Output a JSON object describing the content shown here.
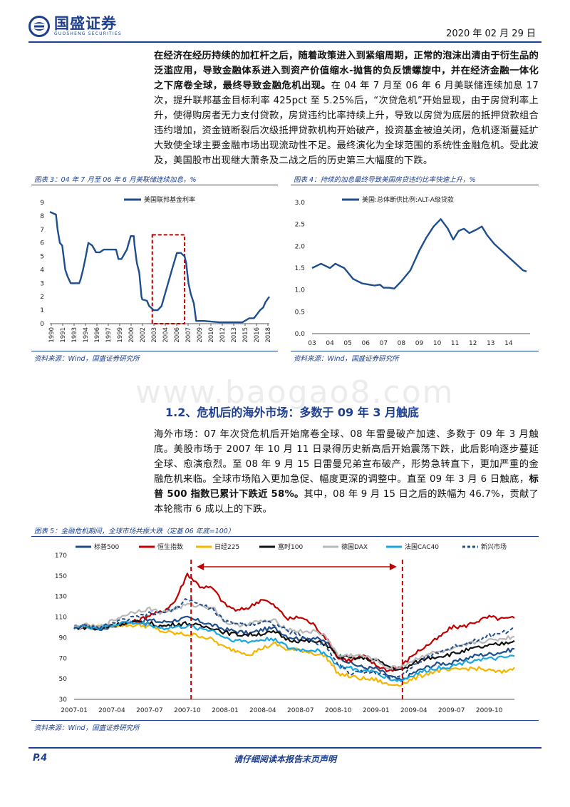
{
  "header": {
    "logo_cn": "国盛证券",
    "logo_en": "GUOSHENG SECURITIES",
    "date": "2020 年 02 月 29 日",
    "logo_color": "#1d3f8f"
  },
  "intro": {
    "bold": "在经济在经历持续的加杠杆之后，随着政策进入到紧缩周期，正常的泡沫出清由于衍生品的泛滥应用，导致金融体系进入到资产价值缩水-抛售的负反馈螺旋中，并在经济金融一体化之下席卷全球，最终导致金融危机出现。",
    "normal": "在 04 年 7 月至 06 年 6 月美联储连续加息 17 次，提升联邦基金目标利率 425pct 至 5.25%后，“次贷危机”开始显现，由于房贷利率上升，使得购房者无力支付贷款，房贷违约比率持续上升，导致以房贷为底层的抵押贷款组合违约增加，资金链断裂后次级抵押贷款机构开始破产，投资基金被迫关闭，危机逐渐蔓延扩大致使全球主要金融市场出现流动性不足。最终演化为全球范围的系统性金融危机。受此波及，美国股市出现继大萧条及二战之后的历史第三大幅度的下跌。"
  },
  "watermark": "www.baogao8.com",
  "fig3": {
    "title": "图表 3：04 年 7 月至 06 年 6 月美联储连续加息，%",
    "source": "资料来源：Wind，国盛证券研究所"
  },
  "fig4": {
    "title": "图表 4：持续的加息最终导致美国房贷违约比率快速上升，%",
    "source": "资料来源：Wind，国盛证券研究所"
  },
  "section": {
    "title": "1.2、危机后的海外市场：多数于 09 年 3 月触底"
  },
  "para2": {
    "text1": "海外市场：07 年次贷危机后开始席卷全球、08 年雷曼破产加速、多数于 09 年 3 月触底。美股市场于 2007 年 10 月 11 日录得历史新高后开始震荡下跌，此后影响逐步蔓延全球、愈演愈烈。至 08 年 9 月 15 日雷曼兄弟宣布破产，形势急转直下，更加严重的金融危机来临。全球市场陷入更加急促、幅度更深的调整中。直至 09 年 3 月 6 日触底，",
    "bold": "标普 500 指数已累计下跌近 58%。",
    "text2": "其中，08 年 9 月 15 日之后的跌幅为 46.7%，贡献了本轮熊市 6 成以上的下跌。"
  },
  "fig5": {
    "title": "图表 5：金融危机期间，全球市场共振大跌（定基 06 年底=100）",
    "source": "资料来源：Wind，国盛证券研究所"
  },
  "footer": {
    "page": "P.4",
    "disclaimer": "请仔细阅读本报告末页声明"
  },
  "chart_data": [
    {
      "type": "line",
      "title": "",
      "legend": [
        "美国联邦基金利率"
      ],
      "legend_position": "top-left",
      "xlim": [
        1990,
        2018.5
      ],
      "ylim": [
        0,
        9
      ],
      "x_ticks": [
        "1990",
        "1991",
        "1993",
        "1994",
        "1996",
        "1997",
        "1999",
        "2000",
        "2002",
        "2003",
        "2004",
        "2006",
        "2007",
        "2009",
        "2010",
        "2012",
        "2013",
        "2015",
        "2016",
        "2018"
      ],
      "y_ticks": [
        "0",
        "1",
        "2",
        "3",
        "4",
        "5",
        "6",
        "7",
        "8",
        "9"
      ],
      "color": "#1f4e8c",
      "highlight_box": {
        "x": [
          2003.3,
          2007.5
        ],
        "y": [
          0,
          6.6
        ],
        "color": "#c00000"
      },
      "series": [
        {
          "name": "美国联邦基金利率",
          "x": [
            1990,
            1990.4,
            1990.8,
            1991,
            1991.3,
            1991.6,
            1992,
            1992.3,
            1992.7,
            1993,
            1993.8,
            1994,
            1994.3,
            1994.6,
            1995,
            1995.5,
            1996,
            1996.5,
            1997,
            1997.5,
            1998,
            1998.6,
            1998.9,
            1999.3,
            1999.8,
            2000,
            2000.5,
            2000.9,
            2001,
            2001.3,
            2001.6,
            2001.9,
            2002,
            2002.6,
            2002.9,
            2003.5,
            2004,
            2004.5,
            2005,
            2005.5,
            2006,
            2006.5,
            2007,
            2007.5,
            2007.7,
            2008,
            2008.3,
            2008.7,
            2009,
            2010,
            2012,
            2014,
            2015,
            2015.9,
            2016.5,
            2016.9,
            2017.3,
            2017.7,
            2018,
            2018.5
          ],
          "values": [
            8.3,
            8.2,
            8.1,
            7.0,
            6.0,
            5.8,
            4.0,
            3.5,
            3.0,
            3.0,
            3.0,
            3.3,
            4.0,
            4.8,
            6.0,
            5.8,
            5.3,
            5.3,
            5.5,
            5.5,
            5.5,
            5.5,
            4.8,
            4.8,
            5.3,
            5.5,
            6.5,
            6.5,
            5.8,
            4.5,
            3.8,
            2.0,
            1.8,
            1.7,
            1.3,
            1.0,
            1.0,
            1.3,
            2.3,
            3.3,
            4.3,
            5.25,
            5.25,
            5.0,
            4.5,
            3.0,
            2.2,
            1.5,
            0.2,
            0.2,
            0.1,
            0.1,
            0.1,
            0.4,
            0.4,
            0.7,
            1.0,
            1.2,
            1.6,
            2.0
          ]
        }
      ]
    },
    {
      "type": "line",
      "title": "",
      "legend": [
        "美国:总体断供比例:ALT-A级贷款"
      ],
      "legend_position": "top-left",
      "xlim": [
        2003,
        2015.2
      ],
      "ylim": [
        0,
        3.0
      ],
      "x_ticks": [
        "03",
        "04",
        "05",
        "06",
        "07",
        "08",
        "09",
        "10",
        "11",
        "12",
        "13",
        "14"
      ],
      "y_ticks": [
        "0.0",
        "0.5",
        "1.0",
        "1.5",
        "2.0",
        "2.5",
        "3.0"
      ],
      "color": "#1f4e8c",
      "series": [
        {
          "name": "美国:总体断供比例:ALT-A级贷款",
          "x": [
            2003,
            2003.5,
            2004,
            2004.3,
            2004.8,
            2005.3,
            2005.8,
            2006.2,
            2006.5,
            2006.8,
            2007,
            2007.3,
            2007.6,
            2008,
            2008.5,
            2009,
            2009.4,
            2009.8,
            2010.2,
            2010.6,
            2010.9,
            2011.2,
            2011.5,
            2011.8,
            2012.2,
            2012.5,
            2012.8,
            2013.2,
            2013.6,
            2014,
            2014.4,
            2014.8,
            2015
          ],
          "values": [
            1.5,
            1.6,
            1.5,
            1.6,
            1.5,
            1.25,
            1.15,
            1.12,
            1.1,
            1.12,
            1.05,
            1.05,
            1.03,
            1.2,
            1.45,
            1.9,
            2.2,
            2.45,
            2.62,
            2.4,
            2.15,
            2.35,
            2.4,
            2.3,
            2.38,
            2.45,
            2.25,
            2.05,
            1.9,
            1.75,
            1.6,
            1.45,
            1.42
          ]
        }
      ]
    },
    {
      "type": "line",
      "title": "",
      "legend": [
        "标普500",
        "恒生指数",
        "日经225",
        "富时100",
        "德国DAX",
        "法国CAC40",
        "新兴市场"
      ],
      "legend_position": "top",
      "xlim": [
        "2007-01",
        "2009-12"
      ],
      "ylim": [
        30,
        170
      ],
      "y_ticks": [
        "30",
        "50",
        "70",
        "90",
        "110",
        "130",
        "150",
        "170"
      ],
      "x_ticks": [
        "2007-01",
        "2007-04",
        "2007-07",
        "2007-10",
        "2008-01",
        "2008-04",
        "2008-07",
        "2008-10",
        "2009-01",
        "2009-04",
        "2009-07",
        "2009-10"
      ],
      "annotation": {
        "vlines": [
          "2007-10-11",
          "2009-03-06"
        ],
        "arrow": "double-headed",
        "color": "#c00000"
      },
      "x_months": [
        0,
        1,
        2,
        3,
        4,
        5,
        6,
        7,
        8,
        9,
        10,
        11,
        12,
        13,
        14,
        15,
        16,
        17,
        18,
        19,
        20,
        21,
        22,
        23,
        24,
        25,
        26,
        27,
        28,
        29,
        30,
        31,
        32,
        33,
        34,
        35
      ],
      "series": [
        {
          "name": "标普500",
          "color": "#1f4e8c",
          "dash": false,
          "values": [
            100,
            101,
            98,
            101,
            104,
            106,
            107,
            105,
            107,
            109,
            106,
            102,
            98,
            96,
            94,
            98,
            99,
            91,
            89,
            90,
            86,
            72,
            65,
            61,
            60,
            53,
            48,
            56,
            61,
            65,
            65,
            69,
            73,
            74,
            76,
            79
          ]
        },
        {
          "name": "恒生指数",
          "color": "#c00000",
          "dash": false,
          "values": [
            100,
            101,
            100,
            102,
            104,
            106,
            112,
            115,
            125,
            152,
            140,
            138,
            122,
            116,
            120,
            128,
            120,
            108,
            110,
            103,
            90,
            70,
            68,
            72,
            63,
            58,
            62,
            74,
            82,
            90,
            100,
            101,
            106,
            110,
            108,
            109
          ]
        },
        {
          "name": "日经225",
          "color": "#f5b400",
          "dash": false,
          "values": [
            100,
            101,
            100,
            102,
            102,
            102,
            101,
            96,
            94,
            93,
            92,
            88,
            80,
            77,
            74,
            80,
            84,
            78,
            78,
            75,
            72,
            55,
            52,
            50,
            49,
            44,
            45,
            50,
            55,
            58,
            58,
            60,
            60,
            58,
            56,
            61
          ]
        },
        {
          "name": "富时100",
          "color": "#111111",
          "dash": false,
          "values": [
            100,
            100,
            98,
            102,
            104,
            105,
            104,
            101,
            103,
            104,
            101,
            100,
            95,
            93,
            93,
            94,
            95,
            88,
            87,
            86,
            84,
            72,
            70,
            70,
            68,
            62,
            58,
            65,
            70,
            72,
            74,
            77,
            80,
            82,
            84,
            87
          ]
        },
        {
          "name": "德国DAX",
          "color": "#b8b8b8",
          "dash": false,
          "values": [
            100,
            102,
            100,
            106,
            112,
            116,
            118,
            114,
            118,
            122,
            121,
            120,
            105,
            102,
            104,
            106,
            106,
            98,
            96,
            96,
            92,
            72,
            73,
            72,
            68,
            60,
            62,
            68,
            74,
            76,
            78,
            82,
            86,
            87,
            89,
            91
          ]
        },
        {
          "name": "法国CAC40",
          "color": "#1aa6e0",
          "dash": false,
          "values": [
            100,
            101,
            99,
            102,
            105,
            104,
            103,
            99,
            100,
            101,
            99,
            97,
            90,
            87,
            86,
            88,
            89,
            80,
            78,
            78,
            75,
            62,
            60,
            57,
            57,
            50,
            48,
            54,
            58,
            61,
            62,
            66,
            69,
            69,
            70,
            72
          ]
        },
        {
          "name": "新兴市场",
          "color": "#1f4e8c",
          "dash": true,
          "values": [
            100,
            101,
            99,
            104,
            107,
            110,
            113,
            114,
            118,
            128,
            122,
            118,
            105,
            104,
            103,
            106,
            103,
            96,
            92,
            86,
            82,
            64,
            55,
            57,
            56,
            51,
            54,
            63,
            70,
            76,
            80,
            84,
            88,
            92,
            95,
            98
          ]
        }
      ]
    }
  ]
}
